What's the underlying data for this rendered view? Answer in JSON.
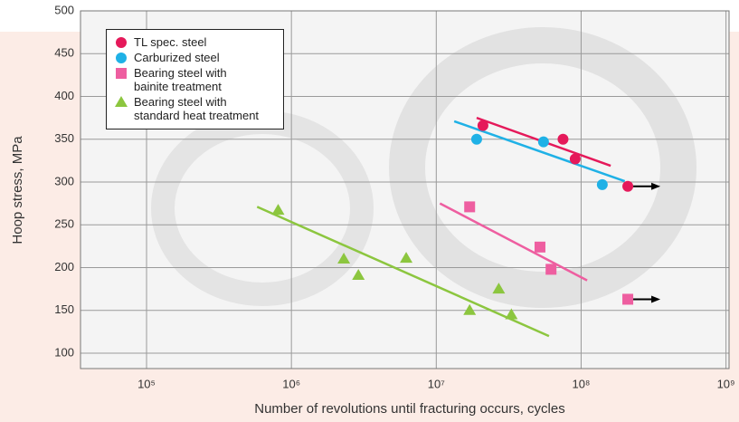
{
  "chart_data": {
    "type": "scatter",
    "x_label": "Number of revolutions until fracturing occurs, cycles",
    "y_label": "Hoop stress, MPa",
    "xscale": "log",
    "xlim": [
      35000,
      1050000000
    ],
    "ylim": [
      82,
      500
    ],
    "xticks": [
      {
        "value": 100000,
        "label": "10⁵"
      },
      {
        "value": 1000000,
        "label": "10⁶"
      },
      {
        "value": 10000000,
        "label": "10⁷"
      },
      {
        "value": 100000000,
        "label": "10⁸"
      },
      {
        "value": 1000000000,
        "label": "10⁹"
      }
    ],
    "yticks": [
      100,
      150,
      200,
      250,
      300,
      350,
      400,
      450,
      500
    ],
    "grid": true,
    "legend": "upper left",
    "series": [
      {
        "name": "TL spec. steel",
        "color": "#e5195a",
        "marker": "circle",
        "arrow": true,
        "x": [
          21000000,
          75000000,
          91000000,
          210000000
        ],
        "values": [
          366,
          350,
          327,
          295
        ],
        "trend_x": [
          19000000,
          160000000
        ],
        "trend_y": [
          375,
          319
        ]
      },
      {
        "name": "Carburized steel",
        "color": "#1fb1e6",
        "marker": "circle",
        "arrow": false,
        "x": [
          19000000,
          55000000,
          140000000
        ],
        "values": [
          350,
          347,
          297
        ],
        "trend_x": [
          13300000,
          200000000
        ],
        "trend_y": [
          371,
          301
        ]
      },
      {
        "name": "Bearing steel with\nbainite treatment",
        "color": "#ee5ea0",
        "marker": "square",
        "arrow": true,
        "x": [
          17000000,
          52000000,
          62000000,
          210000000
        ],
        "values": [
          271,
          224,
          198,
          163
        ],
        "trend_x": [
          10600000,
          110000000
        ],
        "trend_y": [
          275,
          185
        ]
      },
      {
        "name": "Bearing steel with\nstandard heat treatment",
        "color": "#8cc63f",
        "marker": "triangle",
        "arrow": false,
        "x": [
          810000,
          2300000,
          2900000,
          6200000,
          17000000,
          27000000,
          33000000
        ],
        "values": [
          267,
          210,
          191,
          211,
          150,
          175,
          145
        ],
        "trend_x": [
          580000,
          60000000
        ],
        "trend_y": [
          271,
          120
        ]
      }
    ]
  }
}
